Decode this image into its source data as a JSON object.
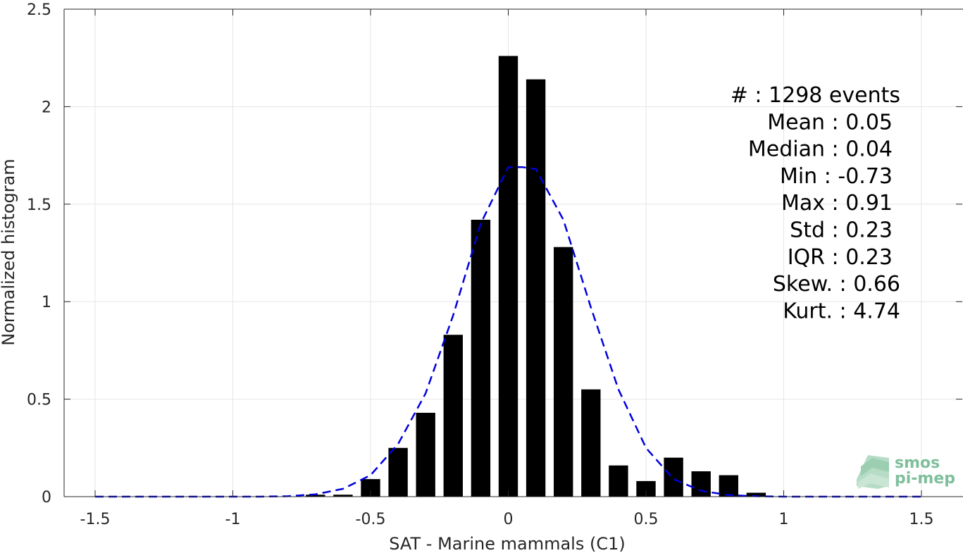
{
  "chart_data": {
    "type": "bar",
    "xlabel": "SAT - Marine mammals (C1)",
    "ylabel": "Normalized histogram",
    "xlim": [
      -1.5,
      1.5
    ],
    "ylim": [
      0,
      2.5
    ],
    "grid": true,
    "x_ticks": [
      "-1.5",
      "-1",
      "-0.5",
      "0",
      "0.5",
      "1",
      "1.5"
    ],
    "y_ticks": [
      "0",
      "0.5",
      "1",
      "1.5",
      "2",
      "2.5"
    ],
    "bar_width": 0.07,
    "bars": [
      {
        "x": -0.7,
        "y": 0.01
      },
      {
        "x": -0.6,
        "y": 0.01
      },
      {
        "x": -0.5,
        "y": 0.09
      },
      {
        "x": -0.4,
        "y": 0.25
      },
      {
        "x": -0.3,
        "y": 0.43
      },
      {
        "x": -0.2,
        "y": 0.83
      },
      {
        "x": -0.1,
        "y": 1.42
      },
      {
        "x": 0.0,
        "y": 2.26
      },
      {
        "x": 0.1,
        "y": 2.14
      },
      {
        "x": 0.2,
        "y": 1.28
      },
      {
        "x": 0.3,
        "y": 0.55
      },
      {
        "x": 0.4,
        "y": 0.16
      },
      {
        "x": 0.5,
        "y": 0.08
      },
      {
        "x": 0.6,
        "y": 0.2
      },
      {
        "x": 0.7,
        "y": 0.13
      },
      {
        "x": 0.8,
        "y": 0.11
      },
      {
        "x": 0.9,
        "y": 0.02
      }
    ],
    "fit_curve": {
      "style": "dashed",
      "color": "#0000dd",
      "x": [
        -1.5,
        -1.4,
        -1.3,
        -1.2,
        -1.1,
        -1.0,
        -0.9,
        -0.8,
        -0.7,
        -0.6,
        -0.5,
        -0.4,
        -0.3,
        -0.2,
        -0.1,
        0.0,
        0.05,
        0.1,
        0.2,
        0.3,
        0.4,
        0.5,
        0.6,
        0.7,
        0.8,
        0.9,
        1.0,
        1.1,
        1.2,
        1.3,
        1.4,
        1.5
      ],
      "y": [
        0,
        0,
        0,
        0,
        0,
        0,
        0,
        0.002,
        0.012,
        0.04,
        0.11,
        0.27,
        0.53,
        0.93,
        1.4,
        1.69,
        1.69,
        1.68,
        1.42,
        0.97,
        0.55,
        0.25,
        0.09,
        0.03,
        0.008,
        0.002,
        0,
        0,
        0,
        0,
        0,
        0
      ]
    },
    "annotations": [
      {
        "label": "#  : 1298 events",
        "align": "right-wide"
      },
      {
        "label": "Mean : 0.05",
        "align": "right"
      },
      {
        "label": "Median : 0.04",
        "align": "right"
      },
      {
        "label": "Min : -0.73",
        "align": "right"
      },
      {
        "label": "Max : 0.91",
        "align": "right"
      },
      {
        "label": "Std : 0.23",
        "align": "right"
      },
      {
        "label": "IQR : 0.23",
        "align": "right"
      },
      {
        "label": "Skew. : 0.66",
        "align": "right-wide"
      },
      {
        "label": "Kurt. : 4.74",
        "align": "right-wide"
      }
    ],
    "colors": {
      "bars": "#000000",
      "grid": "#e6e6e6",
      "axes": "#262626",
      "logo": "#6aa98a"
    }
  },
  "logo": {
    "line1": "smos",
    "line2": "pi-mep"
  }
}
